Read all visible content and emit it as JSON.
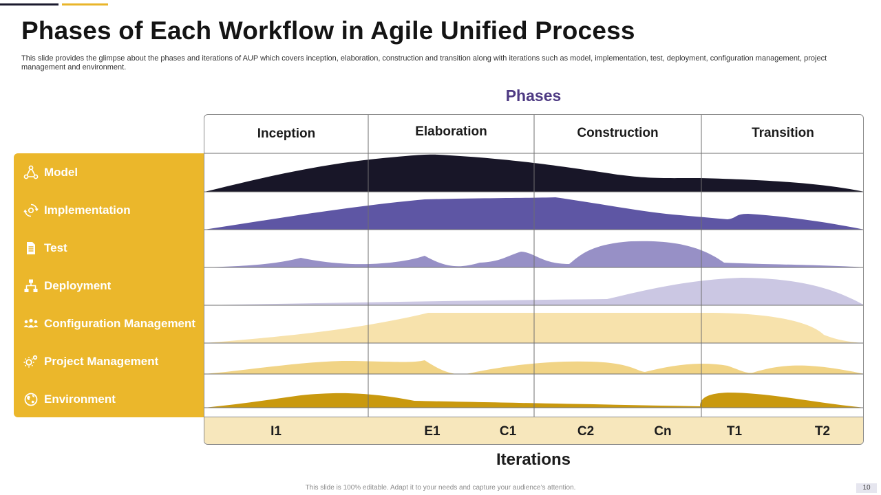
{
  "header": {
    "title": "Phases of Each Workflow in Agile Unified Process",
    "subtitle": "This slide provides the glimpse about the phases and iterations of AUP which covers inception, elaboration, construction and transition along with iterations such as model, implementation, test, deployment, configuration management, project management and environment."
  },
  "diagram": {
    "phases_title": "Phases",
    "iterations_title": "Iterations",
    "phases": [
      "Inception",
      "Elaboration",
      "Construction",
      "Transition"
    ],
    "iterations": [
      "I1",
      "E1",
      "C1",
      "C2",
      "Cn",
      "T1",
      "T2"
    ],
    "workflows": [
      {
        "label": "Model",
        "icon": "network-icon",
        "color": "#181628"
      },
      {
        "label": "Implementation",
        "icon": "gear-cycle-icon",
        "color": "#5e56a4"
      },
      {
        "label": "Test",
        "icon": "document-icon",
        "color": "#9790c6"
      },
      {
        "label": "Deployment",
        "icon": "hierarchy-icon",
        "color": "#cbc7e3"
      },
      {
        "label": "Configuration Management",
        "icon": "team-icon",
        "color": "#f7e2ac"
      },
      {
        "label": "Project Management",
        "icon": "gears-icon",
        "color": "#f1d486"
      },
      {
        "label": "Environment",
        "icon": "globe-icon",
        "color": "#c9990f"
      }
    ]
  },
  "footer": {
    "note": "This slide is 100% editable. Adapt it to your needs and capture your audience’s attention.",
    "page_number": "10"
  }
}
